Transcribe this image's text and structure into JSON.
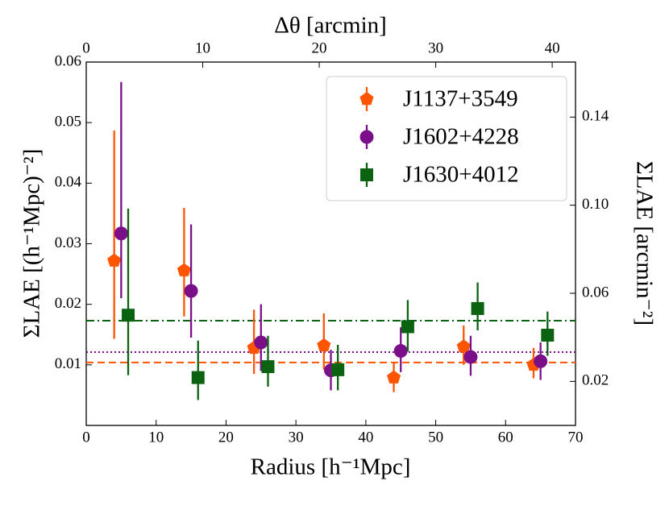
{
  "chart_data": {
    "type": "scatter",
    "xlabel": "Radius [h⁻¹Mpc]",
    "ylabel": "ΣLAE [(h⁻¹Mpc)⁻²]",
    "x2label": "Δθ [arcmin]",
    "y2label": "ΣLAE [arcmin⁻²]",
    "xlim": [
      0,
      70
    ],
    "xticks": [
      0,
      10,
      20,
      30,
      40,
      50,
      60,
      70
    ],
    "ylim": [
      0,
      0.06
    ],
    "yticks": [
      0.01,
      0.02,
      0.03,
      0.04,
      0.05,
      0.06
    ],
    "x2lim": [
      0,
      42
    ],
    "x2ticks": [
      0,
      10,
      20,
      30,
      40
    ],
    "y2lim": [
      0,
      0.165
    ],
    "y2ticks": [
      0.02,
      0.06,
      {
        "value": 0.1,
        "label": "0.10"
      },
      0.14
    ],
    "legend": "upper right",
    "series": [
      {
        "name": "J1137+3549",
        "color": "#ff5500",
        "marker": "pentagon",
        "mean": 0.0104,
        "mean_style": "dashed",
        "x": [
          4,
          14,
          24,
          34,
          44,
          54,
          64
        ],
        "values": [
          0.0272,
          0.0256,
          0.0128,
          0.0132,
          0.0079,
          0.013,
          0.01
        ],
        "err_minus": [
          0.0129,
          0.0076,
          0.0043,
          0.004,
          0.0024,
          0.003,
          0.0022
        ],
        "err_plus": [
          0.0215,
          0.0103,
          0.0063,
          0.0053,
          0.0025,
          0.0035,
          0.0028
        ]
      },
      {
        "name": "J1602+4228",
        "color": "#7b0f8a",
        "marker": "circle",
        "mean": 0.0121,
        "mean_style": "dotted",
        "x": [
          5,
          15,
          25,
          35,
          45,
          55,
          65
        ],
        "values": [
          0.0317,
          0.0222,
          0.0137,
          0.0091,
          0.0123,
          0.0113,
          0.0106
        ],
        "err_minus": [
          0.0107,
          0.0077,
          0.0047,
          0.0033,
          0.0035,
          0.0031,
          0.0031
        ],
        "err_plus": [
          0.025,
          0.011,
          0.0063,
          0.0034,
          0.0039,
          0.0035,
          0.0031
        ]
      },
      {
        "name": "J1630+4012",
        "color": "#0b6312",
        "marker": "square",
        "mean": 0.0173,
        "mean_style": "dashdot",
        "x": [
          6,
          16,
          26,
          36,
          46,
          56,
          66
        ],
        "values": [
          0.0182,
          0.0079,
          0.0097,
          0.0092,
          0.0163,
          0.0193,
          0.0149
        ],
        "err_minus": [
          0.0099,
          0.0037,
          0.0033,
          0.0034,
          0.0041,
          0.0036,
          0.0034
        ],
        "err_plus": [
          0.0176,
          0.0061,
          0.0051,
          0.0041,
          0.0044,
          0.0043,
          0.0039
        ]
      }
    ]
  }
}
